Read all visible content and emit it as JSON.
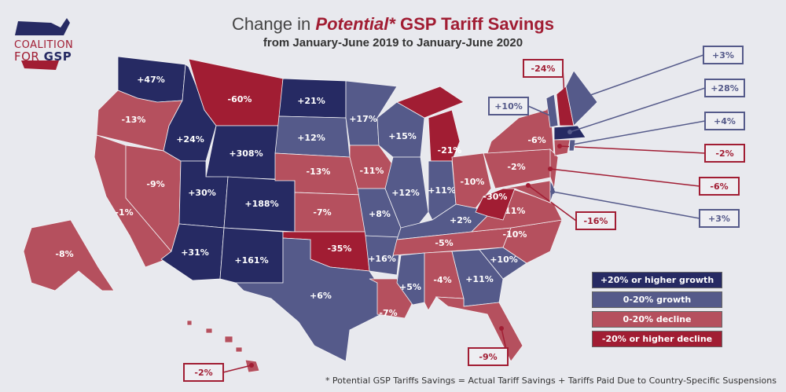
{
  "header": {
    "title_prefix": "Change in",
    "title_emph": "Potential*",
    "title_suffix": "GSP Tariff Savings",
    "subtitle": "from January-June 2019 to January-June 2020"
  },
  "logo": {
    "line1": "COALITION",
    "line2a": "FOR",
    "line2b": "GSP"
  },
  "colors": {
    "high_growth": "#262a63",
    "growth": "#555a8a",
    "decline": "#b5505e",
    "high_decline": "#a11d33",
    "background": "#e8e9ee"
  },
  "legend": [
    {
      "label": "+20% or higher growth",
      "level": "high_growth"
    },
    {
      "label": "0-20% growth",
      "level": "growth"
    },
    {
      "label": "0-20% decline",
      "level": "decline"
    },
    {
      "label": "-20% or higher decline",
      "level": "high_decline"
    }
  ],
  "states": [
    {
      "value": "+47%",
      "level": "high_growth"
    },
    {
      "value": "-13%",
      "level": "decline"
    },
    {
      "value": "-1%",
      "level": "decline"
    },
    {
      "value": "-9%",
      "level": "decline"
    },
    {
      "value": "+24%",
      "level": "high_growth"
    },
    {
      "value": "-60%",
      "level": "high_decline"
    },
    {
      "value": "+308%",
      "level": "high_growth"
    },
    {
      "value": "+30%",
      "level": "high_growth"
    },
    {
      "value": "+31%",
      "level": "high_growth"
    },
    {
      "value": "+188%",
      "level": "high_growth"
    },
    {
      "value": "+161%",
      "level": "high_growth"
    },
    {
      "value": "+21%",
      "level": "high_growth"
    },
    {
      "value": "+12%",
      "level": "growth"
    },
    {
      "value": "-13%",
      "level": "decline"
    },
    {
      "value": "-7%",
      "level": "decline"
    },
    {
      "value": "-35%",
      "level": "high_decline"
    },
    {
      "value": "+6%",
      "level": "growth"
    },
    {
      "value": "+17%",
      "level": "growth"
    },
    {
      "value": "-11%",
      "level": "decline"
    },
    {
      "value": "+8%",
      "level": "growth"
    },
    {
      "value": "+16%",
      "level": "growth"
    },
    {
      "value": "-7%",
      "level": "decline"
    },
    {
      "value": "+15%",
      "level": "growth"
    },
    {
      "value": "+12%",
      "level": "growth"
    },
    {
      "value": "-21%",
      "level": "high_decline"
    },
    {
      "value": "+11%",
      "level": "growth"
    },
    {
      "value": "-10%",
      "level": "decline"
    },
    {
      "value": "+2%",
      "level": "growth"
    },
    {
      "value": "-5%",
      "level": "decline"
    },
    {
      "value": "+5%",
      "level": "growth"
    },
    {
      "value": "-4%",
      "level": "decline"
    },
    {
      "value": "+11%",
      "level": "growth"
    },
    {
      "value": "-9%",
      "level": "decline"
    },
    {
      "value": "+10%",
      "level": "growth"
    },
    {
      "value": "-10%",
      "level": "decline"
    },
    {
      "value": "-11%",
      "level": "decline"
    },
    {
      "value": "-30%",
      "level": "high_decline"
    },
    {
      "value": "-2%",
      "level": "decline"
    },
    {
      "value": "-6%",
      "level": "decline"
    },
    {
      "value": "-16%",
      "level": "decline"
    },
    {
      "value": "+3%",
      "level": "growth"
    },
    {
      "value": "-6%",
      "level": "decline"
    },
    {
      "value": "+10%",
      "level": "growth"
    },
    {
      "value": "-24%",
      "level": "high_decline"
    },
    {
      "value": "+3%",
      "level": "growth"
    },
    {
      "value": "+28%",
      "level": "high_growth"
    },
    {
      "value": "-2%",
      "level": "decline"
    },
    {
      "value": "+4%",
      "level": "growth"
    },
    {
      "value": "-8%",
      "level": "decline"
    },
    {
      "value": "-2%",
      "level": "decline"
    }
  ],
  "footnote": "* Potential GSP Tariffs Savings = Actual Tariff Savings + Tariffs Paid Due to Country-Specific Suspensions"
}
